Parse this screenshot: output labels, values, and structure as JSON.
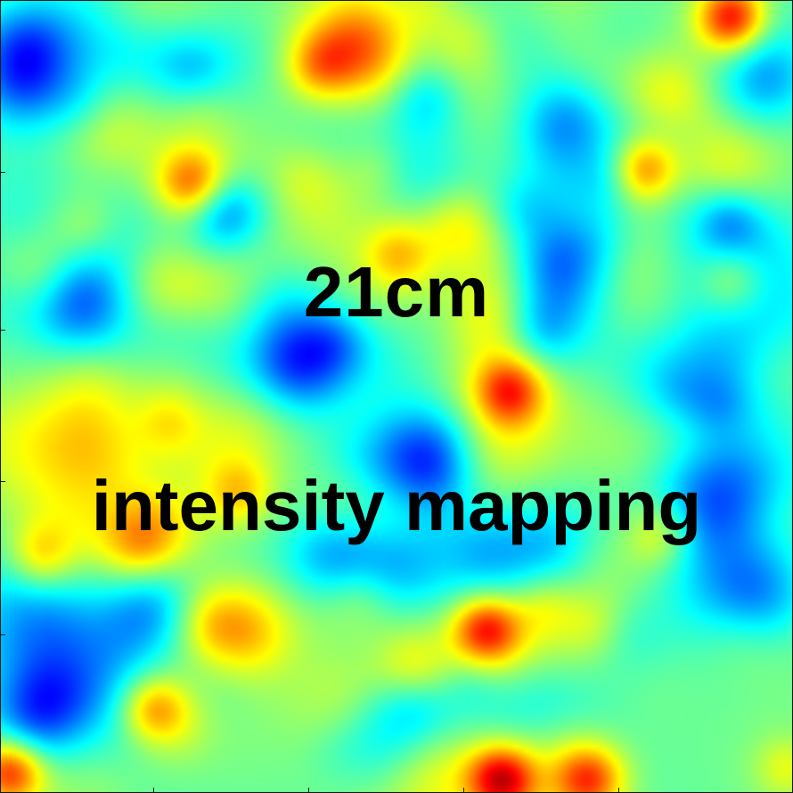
{
  "chart_data": {
    "type": "heatmap",
    "colormap": "jet",
    "title": "",
    "xlabel": "",
    "ylabel": "",
    "grid": false,
    "legend": "none",
    "colors": {
      "low": "#00008f",
      "mid": "#00ffff",
      "high": "#ff3000",
      "frame": "#1a1a1a",
      "text": "#000000"
    },
    "field_peaks_note_free": true,
    "peaks": [
      {
        "u": 0.92,
        "v": 0.02,
        "level": 0.95
      },
      {
        "u": 0.81,
        "v": 0.21,
        "level": 0.85
      },
      {
        "u": 0.64,
        "v": 0.49,
        "level": 0.7
      },
      {
        "u": 0.24,
        "v": 0.23,
        "level": 0.62
      },
      {
        "u": 0.61,
        "v": 0.79,
        "level": 0.8
      },
      {
        "u": 0.63,
        "v": 0.98,
        "level": 0.95
      },
      {
        "u": 0.19,
        "v": 0.89,
        "level": 0.6
      },
      {
        "u": 0.01,
        "v": 0.97,
        "level": 0.9
      },
      {
        "u": 0.92,
        "v": 0.35,
        "level": 0.4
      },
      {
        "u": 0.4,
        "v": 0.08,
        "level": 0.45
      },
      {
        "u": 0.3,
        "v": 0.62,
        "level": 0.4
      },
      {
        "u": 0.83,
        "v": 0.67,
        "level": 0.45
      },
      {
        "u": 0.5,
        "v": 0.32,
        "level": 0.4
      },
      {
        "u": 0.05,
        "v": 0.7,
        "level": 0.45
      },
      {
        "u": 0.74,
        "v": 0.98,
        "level": 0.7
      }
    ],
    "troughs": [
      {
        "u": 0.71,
        "v": 0.15
      },
      {
        "u": 0.7,
        "v": 0.33
      },
      {
        "u": 0.1,
        "v": 0.38
      },
      {
        "u": 0.19,
        "v": 0.76
      },
      {
        "u": 0.42,
        "v": 0.7
      },
      {
        "u": 0.96,
        "v": 0.1
      },
      {
        "u": 0.37,
        "v": 0.46
      },
      {
        "u": 0.95,
        "v": 0.76
      },
      {
        "u": 0.03,
        "v": 0.06
      },
      {
        "u": 0.55,
        "v": 0.58
      }
    ]
  },
  "overlay": {
    "line1": "21cm",
    "line2": "intensity mapping"
  }
}
